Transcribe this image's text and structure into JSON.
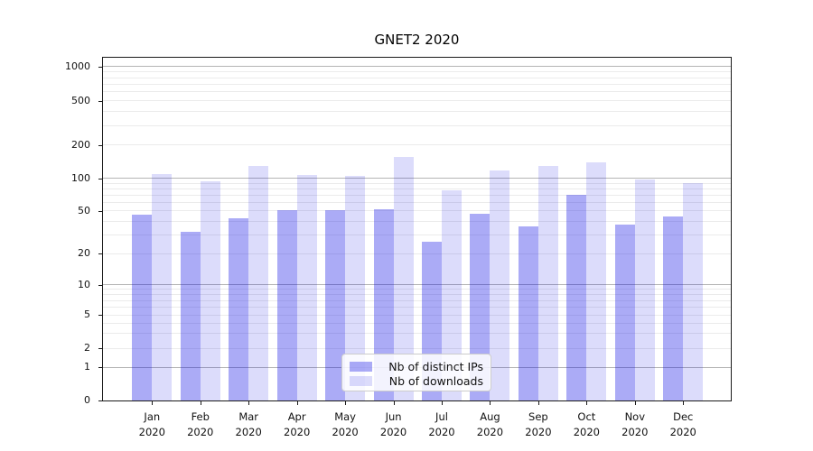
{
  "title": "GNET2 2020",
  "chart_data": {
    "type": "bar",
    "title": "GNET2 2020",
    "categories": [
      "Jan 2020",
      "Feb 2020",
      "Mar 2020",
      "Apr 2020",
      "May 2020",
      "Jun 2020",
      "Jul 2020",
      "Aug 2020",
      "Sep 2020",
      "Oct 2020",
      "Nov 2020",
      "Dec 2020"
    ],
    "x_tick_month": [
      "Jan",
      "Feb",
      "Mar",
      "Apr",
      "May",
      "Jun",
      "Jul",
      "Aug",
      "Sep",
      "Oct",
      "Nov",
      "Dec"
    ],
    "x_tick_year": "2020",
    "series": [
      {
        "name": "Nb of distinct IPs",
        "color": "rgba(10,10,230,0.34)",
        "values": [
          46,
          32,
          43,
          51,
          51,
          52,
          26,
          47,
          36,
          70,
          37,
          44
        ]
      },
      {
        "name": "Nb of downloads",
        "color": "rgba(10,10,230,0.14)",
        "values": [
          110,
          93,
          130,
          107,
          105,
          155,
          78,
          118,
          130,
          140,
          98,
          91
        ]
      }
    ],
    "yscale": "symlog",
    "y_ticks": [
      0,
      1,
      2,
      5,
      10,
      20,
      50,
      100,
      200,
      500,
      1000
    ],
    "ylim": [
      0,
      1230
    ],
    "xlabel": "",
    "ylabel": "",
    "grid": true,
    "legend_position": "lower center",
    "colors": {
      "grid_major": "#b4b4b4",
      "grid_minor": "#ebebeb",
      "spine": "#1a1a1a",
      "background": "#ffffff"
    }
  }
}
